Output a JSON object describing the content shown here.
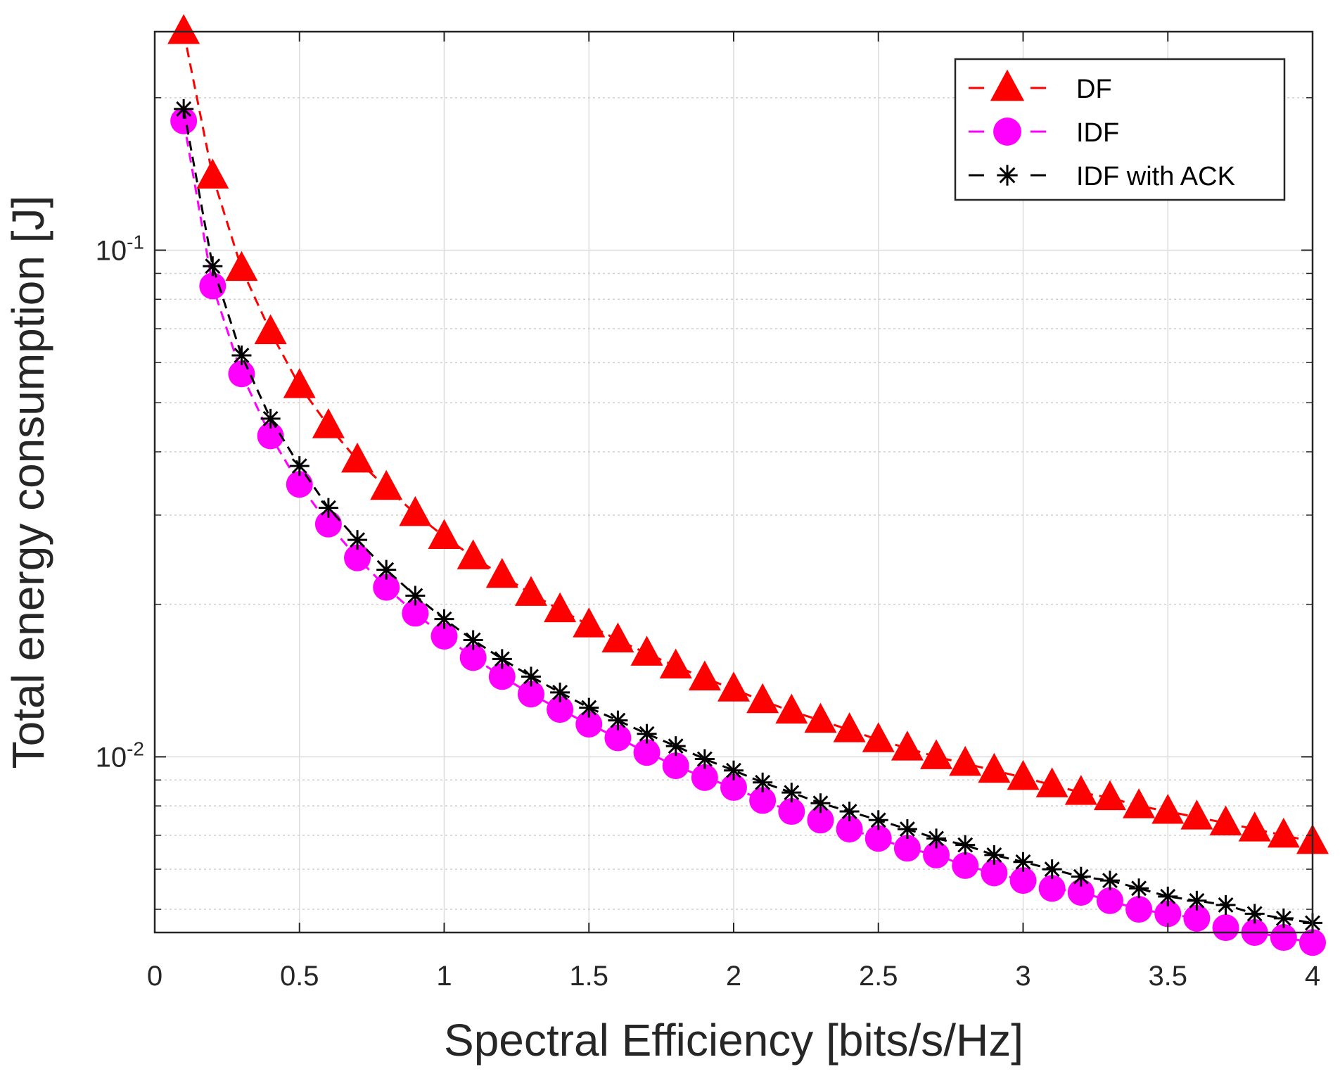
{
  "chart_data": {
    "type": "line",
    "title": "",
    "xlabel": "Spectral Efficiency [bits/s/Hz]",
    "ylabel": "Total energy consumption [J]",
    "yscale": "log",
    "xlim": [
      0,
      4
    ],
    "ylim": [
      0.0045,
      0.27
    ],
    "grid": true,
    "legend_position": "top-right",
    "x_ticks": [
      0,
      0.5,
      1,
      1.5,
      2,
      2.5,
      3,
      3.5,
      4
    ],
    "x_tick_labels": [
      "0",
      "0.5",
      "1",
      "1.5",
      "2",
      "2.5",
      "3",
      "3.5",
      "4"
    ],
    "y_major_ticks": [
      {
        "value": 0.1,
        "base": "10",
        "exponent": "-1"
      },
      {
        "value": 0.01,
        "base": "10",
        "exponent": "-2"
      }
    ],
    "x": [
      0.1,
      0.2,
      0.3,
      0.4,
      0.5,
      0.6,
      0.7,
      0.8,
      0.9,
      1.0,
      1.1,
      1.2,
      1.3,
      1.4,
      1.5,
      1.6,
      1.7,
      1.8,
      1.9,
      2.0,
      2.1,
      2.2,
      2.3,
      2.4,
      2.5,
      2.6,
      2.7,
      2.8,
      2.9,
      3.0,
      3.1,
      3.2,
      3.3,
      3.4,
      3.5,
      3.6,
      3.7,
      3.8,
      3.9,
      4.0
    ],
    "series": [
      {
        "name": "DF",
        "color": "#ff0000",
        "marker": "triangle",
        "line_style": "dashed",
        "values": [
          0.27,
          0.14,
          0.092,
          0.069,
          0.054,
          0.045,
          0.0385,
          0.034,
          0.0302,
          0.0272,
          0.0248,
          0.0228,
          0.021,
          0.0195,
          0.0182,
          0.017,
          0.016,
          0.0151,
          0.0143,
          0.0136,
          0.0129,
          0.0123,
          0.0118,
          0.0113,
          0.0108,
          0.0104,
          0.01,
          0.0097,
          0.0094,
          0.0091,
          0.0088,
          0.0085,
          0.0083,
          0.008,
          0.0078,
          0.0076,
          0.0074,
          0.0072,
          0.007,
          0.0068
        ]
      },
      {
        "name": "IDF",
        "color": "#ff00ff",
        "marker": "circle",
        "line_style": "dashed",
        "values": [
          0.18,
          0.085,
          0.057,
          0.043,
          0.0345,
          0.0288,
          0.0247,
          0.0216,
          0.0192,
          0.0173,
          0.0157,
          0.0144,
          0.0133,
          0.0124,
          0.0116,
          0.0109,
          0.0102,
          0.0096,
          0.0091,
          0.0087,
          0.0082,
          0.0078,
          0.0075,
          0.0072,
          0.0069,
          0.0066,
          0.0064,
          0.0061,
          0.0059,
          0.0057,
          0.0055,
          0.0054,
          0.0052,
          0.005,
          0.0049,
          0.0048,
          0.0046,
          0.0045,
          0.0044,
          0.0043
        ]
      },
      {
        "name": "IDF with ACK",
        "color": "#000000",
        "marker": "asterisk",
        "line_style": "dashed",
        "values": [
          0.19,
          0.093,
          0.062,
          0.0465,
          0.0375,
          0.031,
          0.0268,
          0.0234,
          0.0208,
          0.0187,
          0.017,
          0.0156,
          0.0144,
          0.0134,
          0.0125,
          0.0118,
          0.0111,
          0.0105,
          0.0099,
          0.0094,
          0.0089,
          0.0085,
          0.0081,
          0.0078,
          0.0075,
          0.0072,
          0.0069,
          0.0067,
          0.0064,
          0.0062,
          0.006,
          0.0058,
          0.0057,
          0.0055,
          0.0053,
          0.0052,
          0.0051,
          0.0049,
          0.0048,
          0.0047
        ]
      }
    ]
  }
}
